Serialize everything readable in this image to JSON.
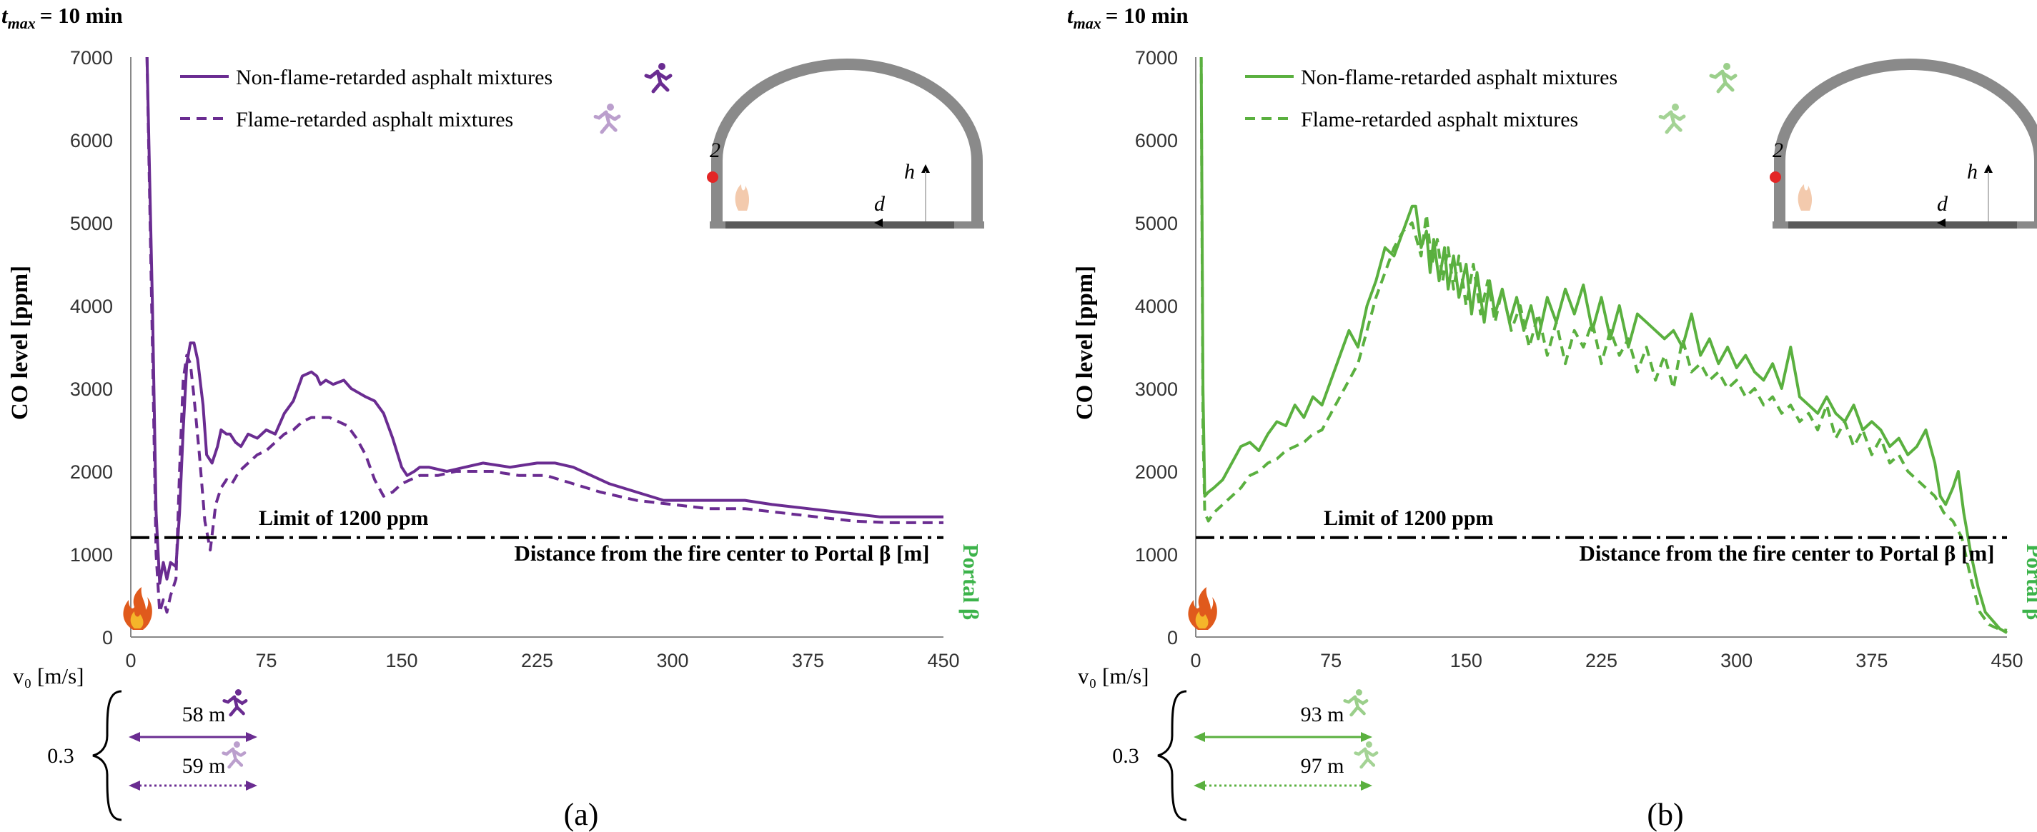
{
  "chart_data": [
    {
      "type": "line",
      "panel": "(a)",
      "header": {
        "var": "t",
        "sub": "max",
        "rest": "= 10 min"
      },
      "ylabel": "CO level [ppm]",
      "xlabel": "Distance from the fire center to Portal β [m]",
      "xlim": [
        0,
        450
      ],
      "ylim": [
        0,
        7000
      ],
      "xticks": [
        "0",
        "75",
        "150",
        "225",
        "300",
        "375",
        "450"
      ],
      "yticks": [
        "0",
        "1000",
        "2000",
        "3000",
        "4000",
        "5000",
        "6000",
        "7000"
      ],
      "limit_label": "Limit of 1200 ppm",
      "limit_value": 1200,
      "portal_label": "Portal β",
      "color": "#6a2c91",
      "portal_color": "#3cb34a",
      "inset": {
        "marker_label": "2",
        "h_label": "h",
        "d_label": "d"
      },
      "series": [
        {
          "name": "Non-flame-retarded asphalt mixtures",
          "style": "solid",
          "x": [
            9,
            12,
            14,
            16,
            18,
            20,
            22,
            25,
            27,
            29,
            31,
            33,
            35,
            37,
            40,
            42,
            45,
            48,
            50,
            53,
            55,
            58,
            61,
            65,
            70,
            75,
            80,
            85,
            90,
            95,
            100,
            103,
            105,
            108,
            112,
            118,
            122,
            126,
            130,
            135,
            140,
            145,
            150,
            153,
            157,
            160,
            165,
            175,
            185,
            195,
            210,
            225,
            235,
            245,
            255,
            265,
            280,
            295,
            310,
            325,
            340,
            355,
            375,
            395,
            415,
            430,
            450
          ],
          "y": [
            7000,
            4000,
            1500,
            650,
            900,
            700,
            900,
            850,
            1500,
            2500,
            3300,
            3550,
            3550,
            3350,
            2800,
            2200,
            2100,
            2300,
            2500,
            2450,
            2450,
            2350,
            2300,
            2450,
            2400,
            2500,
            2450,
            2700,
            2850,
            3150,
            3200,
            3150,
            3050,
            3100,
            3050,
            3100,
            3000,
            2950,
            2900,
            2850,
            2700,
            2400,
            2050,
            1950,
            2000,
            2050,
            2050,
            2000,
            2050,
            2100,
            2050,
            2100,
            2100,
            2050,
            1950,
            1850,
            1750,
            1650,
            1650,
            1650,
            1650,
            1600,
            1550,
            1500,
            1450,
            1450,
            1450
          ]
        },
        {
          "name": "Flame-retarded asphalt mixtures",
          "style": "dashed",
          "x": [
            9,
            12,
            14,
            16,
            18,
            20,
            22,
            25,
            27,
            29,
            31,
            33,
            35,
            38,
            41,
            44,
            47,
            50,
            53,
            56,
            60,
            65,
            70,
            75,
            80,
            85,
            90,
            95,
            100,
            105,
            110,
            115,
            120,
            125,
            130,
            135,
            140,
            145,
            150,
            155,
            160,
            170,
            180,
            190,
            200,
            215,
            230,
            245,
            260,
            280,
            300,
            320,
            340,
            360,
            380,
            400,
            420,
            450
          ],
          "y": [
            7000,
            3500,
            1000,
            300,
            450,
            300,
            500,
            700,
            2000,
            3100,
            3400,
            3300,
            2900,
            2200,
            1400,
            1050,
            1600,
            1800,
            1900,
            1850,
            2000,
            2100,
            2200,
            2250,
            2350,
            2450,
            2500,
            2600,
            2650,
            2650,
            2650,
            2600,
            2550,
            2400,
            2200,
            1900,
            1700,
            1750,
            1850,
            1900,
            1950,
            1950,
            2000,
            2000,
            2000,
            1950,
            1950,
            1850,
            1750,
            1650,
            1600,
            1550,
            1550,
            1500,
            1450,
            1400,
            1380,
            1380
          ]
        }
      ],
      "velocity": {
        "label": "v₀ [m/s]",
        "value": "0.3",
        "arrows": [
          {
            "label": "58 m",
            "style": "solid"
          },
          {
            "label": "59 m",
            "style": "dotted"
          }
        ]
      }
    },
    {
      "type": "line",
      "panel": "(b)",
      "header": {
        "var": "t",
        "sub": "max",
        "rest": "= 10 min"
      },
      "ylabel": "CO level [ppm]",
      "xlabel": "Distance from the fire center to Portal β [m]",
      "xlim": [
        0,
        450
      ],
      "ylim": [
        0,
        7000
      ],
      "xticks": [
        "0",
        "75",
        "150",
        "225",
        "300",
        "375",
        "450"
      ],
      "yticks": [
        "0",
        "1000",
        "2000",
        "3000",
        "4000",
        "5000",
        "6000",
        "7000"
      ],
      "limit_label": "Limit of 1200 ppm",
      "limit_value": 1200,
      "portal_label": "Portal β",
      "color": "#5ab03f",
      "portal_color": "#3cb34a",
      "inset": {
        "marker_label": "2",
        "h_label": "h",
        "d_label": "d"
      },
      "series": [
        {
          "name": "Non-flame-retarded asphalt mixtures",
          "style": "solid",
          "x": [
            3,
            4,
            5,
            7,
            10,
            15,
            20,
            25,
            30,
            35,
            40,
            45,
            50,
            55,
            60,
            65,
            70,
            75,
            80,
            85,
            90,
            95,
            100,
            105,
            110,
            115,
            120,
            122,
            125,
            128,
            130,
            132,
            135,
            138,
            140,
            143,
            146,
            150,
            153,
            156,
            160,
            163,
            166,
            170,
            174,
            178,
            182,
            186,
            190,
            195,
            200,
            205,
            210,
            215,
            220,
            225,
            230,
            235,
            240,
            245,
            250,
            255,
            260,
            265,
            270,
            275,
            280,
            285,
            290,
            295,
            300,
            305,
            310,
            315,
            320,
            325,
            330,
            335,
            340,
            345,
            350,
            355,
            360,
            365,
            370,
            375,
            380,
            385,
            390,
            395,
            400,
            405,
            410,
            413,
            416,
            420,
            423,
            426,
            430,
            434,
            438,
            442,
            446,
            450
          ],
          "y": [
            7000,
            3000,
            1700,
            1750,
            1800,
            1900,
            2100,
            2300,
            2350,
            2250,
            2450,
            2600,
            2550,
            2800,
            2650,
            2900,
            2800,
            3100,
            3400,
            3700,
            3500,
            4000,
            4300,
            4700,
            4600,
            4900,
            5200,
            5200,
            4700,
            4900,
            4400,
            4800,
            4300,
            4700,
            4200,
            4600,
            4100,
            4500,
            3900,
            4400,
            3800,
            4300,
            3900,
            4200,
            3800,
            4100,
            3700,
            4000,
            3600,
            4100,
            3800,
            4200,
            3900,
            4250,
            3700,
            4100,
            3600,
            4000,
            3500,
            3900,
            3800,
            3700,
            3600,
            3700,
            3500,
            3900,
            3400,
            3600,
            3300,
            3500,
            3250,
            3400,
            3200,
            3100,
            3300,
            3000,
            3500,
            2900,
            2800,
            2700,
            2900,
            2700,
            2600,
            2800,
            2500,
            2600,
            2500,
            2300,
            2400,
            2200,
            2300,
            2500,
            2100,
            1700,
            1600,
            1800,
            2000,
            1500,
            1000,
            600,
            300,
            200,
            100,
            50
          ]
        },
        {
          "name": "Flame-retarded asphalt mixtures",
          "style": "dashed",
          "x": [
            3,
            4,
            5,
            7,
            10,
            15,
            20,
            25,
            30,
            35,
            40,
            45,
            50,
            55,
            60,
            65,
            70,
            75,
            80,
            85,
            90,
            95,
            100,
            105,
            110,
            115,
            120,
            125,
            128,
            131,
            134,
            137,
            140,
            143,
            146,
            150,
            154,
            158,
            162,
            166,
            170,
            175,
            180,
            185,
            190,
            195,
            200,
            205,
            210,
            215,
            220,
            225,
            230,
            235,
            240,
            245,
            250,
            255,
            260,
            265,
            270,
            275,
            280,
            285,
            290,
            295,
            300,
            305,
            310,
            315,
            320,
            325,
            330,
            335,
            340,
            345,
            350,
            355,
            360,
            365,
            370,
            375,
            380,
            385,
            390,
            395,
            400,
            405,
            410,
            415,
            420,
            425,
            430,
            435,
            440,
            445,
            450
          ],
          "y": [
            7000,
            2500,
            1500,
            1400,
            1500,
            1600,
            1700,
            1800,
            1950,
            2000,
            2100,
            2150,
            2250,
            2300,
            2350,
            2450,
            2500,
            2700,
            2900,
            3100,
            3300,
            3700,
            4100,
            4400,
            4700,
            4900,
            5000,
            4600,
            5100,
            4500,
            4800,
            4300,
            4700,
            4200,
            4600,
            4000,
            4500,
            3900,
            4300,
            3800,
            4200,
            3700,
            4000,
            3500,
            3900,
            3400,
            3800,
            3300,
            3700,
            3500,
            3800,
            3300,
            3700,
            3400,
            3600,
            3200,
            3500,
            3100,
            3400,
            3000,
            3600,
            3200,
            3300,
            3100,
            3200,
            3000,
            3100,
            2900,
            3000,
            2800,
            2900,
            2700,
            2800,
            2600,
            2700,
            2500,
            2800,
            2400,
            2600,
            2300,
            2500,
            2200,
            2400,
            2100,
            2200,
            2000,
            1900,
            1800,
            1700,
            1500,
            1400,
            1200,
            700,
            300,
            150,
            100,
            80
          ]
        }
      ],
      "velocity": {
        "label": "v₀ [m/s]",
        "value": "0.3",
        "arrows": [
          {
            "label": "93 m",
            "style": "solid"
          },
          {
            "label": "97 m",
            "style": "dotted"
          }
        ]
      }
    }
  ]
}
